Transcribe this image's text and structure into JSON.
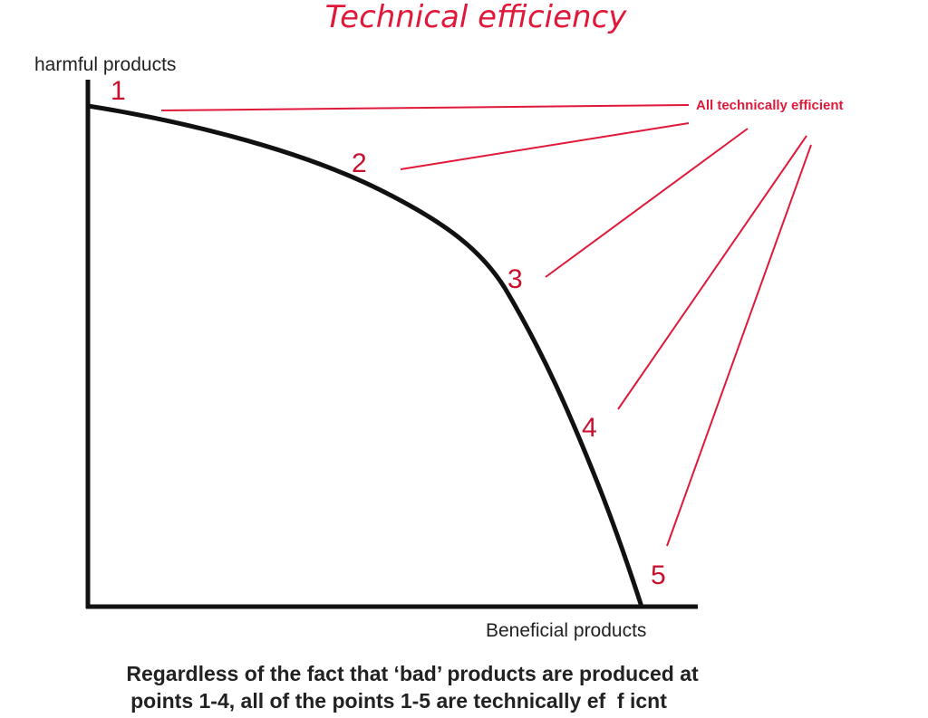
{
  "title": "Technical efficiency",
  "y_axis_label": "harmful products",
  "x_axis_label": "Beneficial products",
  "points": [
    "1",
    "2",
    "3",
    "4",
    "5"
  ],
  "annotation": "All technically efficient",
  "caption": {
    "line1": "Regardless of the fact that ‘bad’ products are produced at",
    "line2": "points 1-4, all of the points 1-5 are technically ef  f icnt"
  },
  "colors": {
    "accent": "#e0193a",
    "curve": "#111111"
  }
}
